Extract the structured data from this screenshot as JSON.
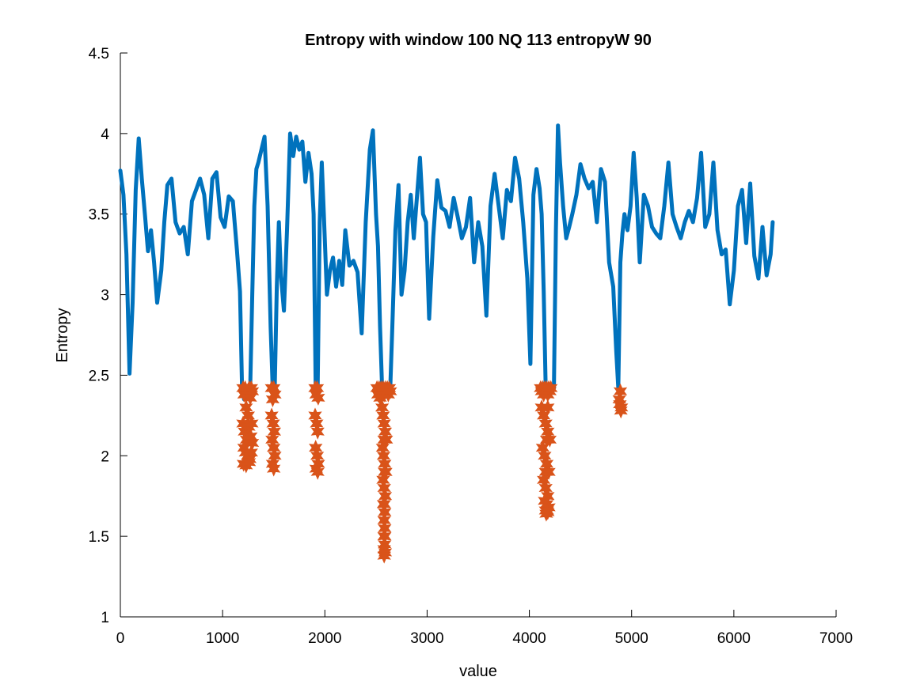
{
  "chart_data": {
    "type": "line",
    "title": "Entropy with window 100  NQ 113  entropyW 90",
    "xlabel": "value",
    "ylabel": "Entropy",
    "xlim": [
      0,
      7000
    ],
    "ylim": [
      1,
      4.5
    ],
    "xticks": [
      0,
      1000,
      2000,
      3000,
      4000,
      5000,
      6000,
      7000
    ],
    "yticks": [
      1,
      1.5,
      2,
      2.5,
      3,
      3.5,
      4,
      4.5
    ],
    "grid": false,
    "legend": "none",
    "series": [
      {
        "type": "line",
        "color": "#0072BD",
        "x": [
          0,
          30,
          60,
          90,
          120,
          150,
          180,
          210,
          240,
          270,
          300,
          330,
          360,
          400,
          430,
          460,
          500,
          540,
          580,
          620,
          660,
          700,
          740,
          780,
          820,
          860,
          900,
          940,
          980,
          1020,
          1060,
          1100,
          1140,
          1170,
          1190,
          1210,
          1230,
          1250,
          1270,
          1290,
          1310,
          1330,
          1350,
          1380,
          1410,
          1440,
          1470,
          1490,
          1510,
          1530,
          1550,
          1570,
          1600,
          1630,
          1660,
          1690,
          1720,
          1750,
          1780,
          1810,
          1840,
          1870,
          1890,
          1910,
          1930,
          1950,
          1970,
          1990,
          2020,
          2050,
          2080,
          2110,
          2140,
          2170,
          2200,
          2240,
          2280,
          2320,
          2360,
          2400,
          2440,
          2470,
          2500,
          2520,
          2540,
          2560,
          2580,
          2600,
          2620,
          2640,
          2660,
          2690,
          2720,
          2750,
          2780,
          2810,
          2840,
          2870,
          2900,
          2930,
          2960,
          2990,
          3020,
          3060,
          3100,
          3140,
          3180,
          3220,
          3260,
          3300,
          3340,
          3380,
          3420,
          3460,
          3500,
          3540,
          3580,
          3620,
          3660,
          3700,
          3740,
          3780,
          3820,
          3860,
          3900,
          3940,
          3980,
          4010,
          4040,
          4070,
          4100,
          4120,
          4140,
          4160,
          4180,
          4200,
          4220,
          4240,
          4260,
          4280,
          4300,
          4330,
          4360,
          4390,
          4420,
          4460,
          4500,
          4540,
          4580,
          4620,
          4660,
          4700,
          4740,
          4780,
          4820,
          4850,
          4870,
          4890,
          4910,
          4930,
          4960,
          4990,
          5020,
          5050,
          5080,
          5120,
          5160,
          5200,
          5240,
          5280,
          5320,
          5360,
          5400,
          5440,
          5480,
          5520,
          5560,
          5600,
          5640,
          5680,
          5720,
          5760,
          5800,
          5840,
          5880,
          5920,
          5960,
          6000,
          6040,
          6080,
          6120,
          6160,
          6200,
          6240,
          6280,
          6320,
          6360,
          6380
        ],
        "y": [
          3.77,
          3.62,
          3.25,
          2.51,
          2.95,
          3.65,
          3.97,
          3.72,
          3.5,
          3.27,
          3.4,
          3.2,
          2.95,
          3.15,
          3.45,
          3.68,
          3.72,
          3.45,
          3.38,
          3.42,
          3.25,
          3.58,
          3.65,
          3.72,
          3.62,
          3.35,
          3.72,
          3.76,
          3.48,
          3.42,
          3.61,
          3.58,
          3.28,
          3.02,
          2.42,
          2.35,
          2.42,
          2.42,
          2.42,
          3.0,
          3.55,
          3.78,
          3.82,
          3.9,
          3.98,
          3.55,
          2.8,
          2.42,
          2.42,
          3.05,
          3.45,
          3.12,
          2.9,
          3.4,
          4.0,
          3.86,
          3.98,
          3.9,
          3.95,
          3.7,
          3.88,
          3.75,
          3.5,
          2.42,
          2.42,
          3.45,
          3.82,
          3.5,
          3.0,
          3.15,
          3.23,
          3.05,
          3.21,
          3.06,
          3.4,
          3.18,
          3.21,
          3.14,
          2.76,
          3.45,
          3.9,
          4.02,
          3.5,
          3.3,
          2.8,
          2.42,
          2.42,
          2.42,
          2.42,
          2.42,
          2.8,
          3.4,
          3.68,
          3.0,
          3.15,
          3.45,
          3.62,
          3.35,
          3.6,
          3.85,
          3.5,
          3.45,
          2.85,
          3.36,
          3.71,
          3.54,
          3.52,
          3.42,
          3.6,
          3.48,
          3.35,
          3.42,
          3.6,
          3.2,
          3.45,
          3.3,
          2.87,
          3.55,
          3.75,
          3.55,
          3.35,
          3.65,
          3.58,
          3.85,
          3.72,
          3.45,
          3.1,
          2.57,
          3.62,
          3.78,
          3.66,
          3.5,
          3.02,
          2.42,
          2.42,
          2.42,
          2.42,
          2.42,
          3.4,
          4.05,
          3.82,
          3.55,
          3.35,
          3.42,
          3.5,
          3.62,
          3.81,
          3.72,
          3.66,
          3.7,
          3.45,
          3.78,
          3.7,
          3.2,
          3.05,
          2.65,
          2.42,
          3.2,
          3.38,
          3.5,
          3.4,
          3.55,
          3.88,
          3.6,
          3.2,
          3.62,
          3.55,
          3.42,
          3.38,
          3.35,
          3.55,
          3.82,
          3.5,
          3.42,
          3.35,
          3.45,
          3.52,
          3.45,
          3.6,
          3.88,
          3.42,
          3.5,
          3.82,
          3.4,
          3.25,
          3.28,
          2.94,
          3.15,
          3.55,
          3.65,
          3.32,
          3.69,
          3.24,
          3.1,
          3.42,
          3.12,
          3.25,
          3.45
        ]
      },
      {
        "type": "scatter",
        "marker": "hexagram",
        "color": "#D95319",
        "x": [
          1200,
          1210,
          1220,
          1230,
          1240,
          1250,
          1260,
          1270,
          1280,
          1290,
          1200,
          1215,
          1235,
          1255,
          1275,
          1285,
          1210,
          1225,
          1245,
          1265,
          1280,
          1290,
          1205,
          1230,
          1260,
          1480,
          1490,
          1500,
          1510,
          1480,
          1495,
          1505,
          1485,
          1500,
          1510,
          1490,
          1500,
          1905,
          1915,
          1925,
          1935,
          1905,
          1920,
          1930,
          1910,
          1925,
          1935,
          1915,
          1930,
          2510,
          2520,
          2530,
          2540,
          2550,
          2560,
          2570,
          2580,
          2590,
          2600,
          2610,
          2620,
          2630,
          2640,
          2560,
          2570,
          2580,
          2590,
          2600,
          2565,
          2575,
          2585,
          2595,
          2570,
          2580,
          2590,
          2575,
          2585,
          2580,
          2585,
          2580,
          2585,
          2580,
          2590,
          2580,
          2585,
          2580,
          2585,
          2580,
          4110,
          4120,
          4130,
          4140,
          4150,
          4160,
          4170,
          4180,
          4190,
          4200,
          4210,
          4120,
          4140,
          4160,
          4180,
          4200,
          4130,
          4150,
          4170,
          4190,
          4140,
          4160,
          4180,
          4150,
          4170,
          4190,
          4160,
          4180,
          4165,
          4175,
          4160,
          4170,
          4180,
          4890,
          4880,
          4900,
          4885,
          4895
        ],
        "y": [
          2.42,
          2.38,
          2.42,
          2.3,
          2.4,
          2.25,
          2.42,
          2.36,
          2.42,
          2.4,
          2.2,
          2.15,
          2.1,
          2.18,
          2.12,
          2.2,
          2.05,
          2.02,
          2.0,
          1.98,
          2.02,
          2.08,
          1.95,
          1.94,
          1.96,
          2.42,
          2.35,
          2.42,
          2.38,
          2.25,
          2.2,
          2.15,
          2.1,
          2.05,
          2.0,
          1.95,
          1.92,
          2.42,
          2.38,
          2.42,
          2.36,
          2.25,
          2.2,
          2.15,
          2.05,
          2.0,
          1.95,
          1.92,
          1.9,
          2.42,
          2.38,
          2.42,
          2.36,
          2.42,
          2.4,
          2.42,
          2.38,
          2.42,
          2.4,
          2.42,
          2.38,
          2.42,
          2.4,
          2.3,
          2.25,
          2.2,
          2.15,
          2.1,
          2.05,
          2.0,
          1.95,
          1.9,
          1.85,
          1.8,
          1.75,
          1.7,
          1.65,
          1.6,
          1.55,
          1.5,
          1.45,
          1.42,
          1.4,
          1.38,
          1.5,
          1.7,
          1.9,
          2.1,
          2.42,
          2.4,
          2.42,
          2.38,
          2.42,
          2.4,
          2.42,
          2.38,
          2.42,
          2.4,
          2.42,
          2.3,
          2.25,
          2.2,
          2.15,
          2.1,
          2.05,
          2.0,
          1.95,
          1.9,
          1.85,
          1.8,
          1.75,
          1.72,
          1.7,
          1.68,
          1.66,
          1.65,
          1.64,
          1.66,
          1.9,
          2.1,
          2.3,
          2.4,
          2.35,
          2.3,
          2.32,
          2.28
        ]
      }
    ]
  }
}
